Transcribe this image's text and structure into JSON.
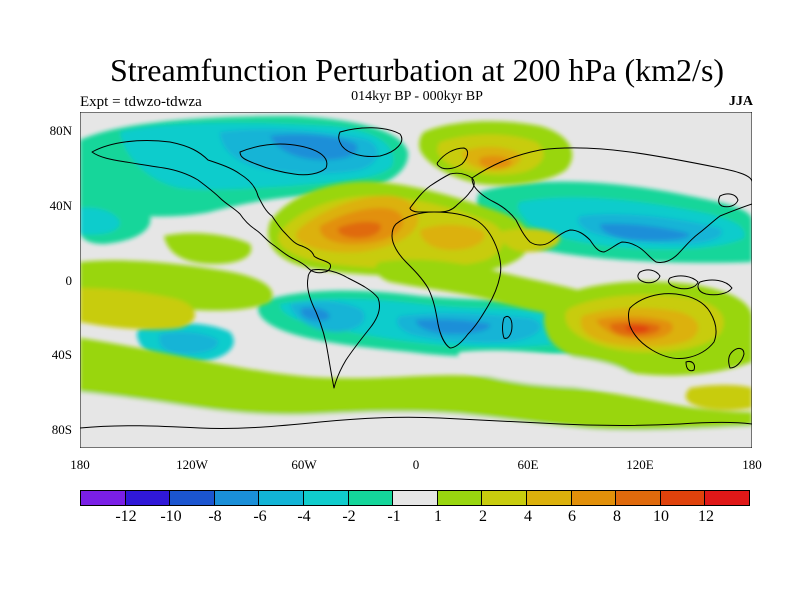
{
  "title": "Streamfunction Perturbation at 200 hPa (km2/s)",
  "subtitle": "014kyr BP - 000kyr BP",
  "left_label": "Expt = tdwzo-tdwza",
  "right_label": "JJA",
  "map": {
    "lat_ticks": [
      "80N",
      "40N",
      "0",
      "40S",
      "80S"
    ],
    "lon_ticks": [
      "180",
      "120W",
      "60W",
      "0",
      "60E",
      "120E",
      "180"
    ],
    "background_color": "#e6e6e6"
  },
  "colorbar": {
    "colors": [
      "#7a1fe6",
      "#3018d8",
      "#1b55d0",
      "#1a8fd8",
      "#12b4d6",
      "#10cccc",
      "#14d69a",
      "#e6e6e6",
      "#99d60f",
      "#c8cc0e",
      "#dcb10c",
      "#e2900a",
      "#e06a0c",
      "#e0420c",
      "#e01818"
    ],
    "labels": [
      "-12",
      "-10",
      "-8",
      "-6",
      "-4",
      "-2",
      "-1",
      "1",
      "2",
      "4",
      "6",
      "8",
      "10",
      "12"
    ]
  }
}
